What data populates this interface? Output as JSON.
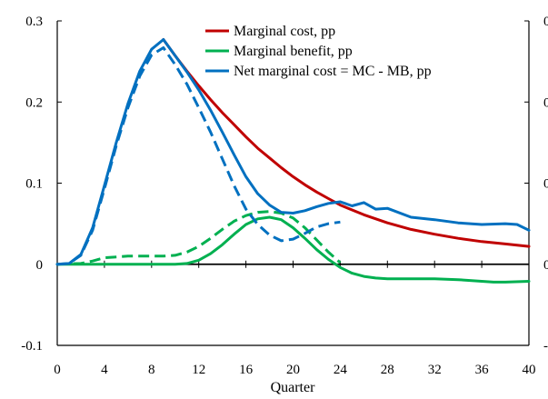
{
  "chart_data": {
    "type": "line",
    "title": "",
    "xlabel": "Quarter",
    "ylabel": "",
    "xlim": [
      0,
      40
    ],
    "ylim": [
      -0.1,
      0.3
    ],
    "xticks": [
      0,
      4,
      8,
      12,
      16,
      20,
      24,
      28,
      32,
      36,
      40
    ],
    "yticks": [
      -0.1,
      0,
      0.1,
      0.2,
      0.3
    ],
    "ytick_labels": [
      "-0.1",
      "0",
      "0.1",
      "0.2",
      "0.3"
    ],
    "grid": false,
    "legend_position": "top-right",
    "series": [
      {
        "name": "Marginal cost, pp",
        "color": "#c00000",
        "style": "solid",
        "x": [
          9,
          10,
          11,
          12,
          13,
          14,
          15,
          16,
          17,
          18,
          19,
          20,
          21,
          22,
          23,
          24,
          26,
          28,
          30,
          32,
          34,
          36,
          38,
          40
        ],
        "y": [
          0.277,
          0.257,
          0.238,
          0.22,
          0.203,
          0.187,
          0.172,
          0.157,
          0.143,
          0.131,
          0.119,
          0.108,
          0.098,
          0.089,
          0.081,
          0.073,
          0.061,
          0.051,
          0.043,
          0.037,
          0.032,
          0.028,
          0.025,
          0.022
        ]
      },
      {
        "name": "Marginal benefit, pp",
        "color": "#00b050",
        "style": "solid",
        "x": [
          0,
          2,
          4,
          6,
          8,
          9,
          10,
          11,
          12,
          13,
          14,
          15,
          16,
          17,
          18,
          19,
          20,
          21,
          22,
          23,
          24,
          25,
          26,
          27,
          28,
          30,
          32,
          34,
          36,
          37,
          38,
          40
        ],
        "y": [
          0,
          0,
          0,
          0,
          0,
          0,
          0,
          0.001,
          0.005,
          0.013,
          0.024,
          0.037,
          0.049,
          0.056,
          0.058,
          0.055,
          0.045,
          0.032,
          0.018,
          0.006,
          -0.004,
          -0.011,
          -0.015,
          -0.017,
          -0.018,
          -0.018,
          -0.018,
          -0.019,
          -0.021,
          -0.022,
          -0.022,
          -0.021
        ]
      },
      {
        "name": "Marginal benefit, pp (dashed)",
        "color": "#00b050",
        "style": "dashed",
        "x": [
          0,
          2,
          3,
          4,
          5,
          6,
          7,
          8,
          9,
          10,
          11,
          12,
          13,
          14,
          15,
          16,
          17,
          18,
          19,
          20,
          21,
          22,
          23,
          24
        ],
        "y": [
          0,
          0.001,
          0.004,
          0.008,
          0.009,
          0.01,
          0.01,
          0.01,
          0.01,
          0.011,
          0.015,
          0.022,
          0.032,
          0.043,
          0.053,
          0.06,
          0.064,
          0.065,
          0.063,
          0.057,
          0.045,
          0.03,
          0.015,
          0.002
        ]
      },
      {
        "name": "Net marginal cost = MC - MB, pp",
        "color": "#0070c0",
        "style": "solid",
        "x": [
          0,
          1,
          2,
          3,
          4,
          5,
          6,
          7,
          8,
          9,
          10,
          11,
          12,
          13,
          14,
          15,
          16,
          17,
          18,
          19,
          20,
          21,
          22,
          23,
          24,
          25,
          26,
          27,
          28,
          30,
          32,
          34,
          36,
          38,
          39,
          40
        ],
        "y": [
          0,
          0.001,
          0.012,
          0.045,
          0.097,
          0.15,
          0.198,
          0.238,
          0.265,
          0.277,
          0.257,
          0.237,
          0.215,
          0.19,
          0.163,
          0.135,
          0.108,
          0.087,
          0.073,
          0.064,
          0.063,
          0.066,
          0.071,
          0.075,
          0.077,
          0.072,
          0.076,
          0.068,
          0.069,
          0.058,
          0.055,
          0.051,
          0.049,
          0.05,
          0.049,
          0.042
        ]
      },
      {
        "name": "Net marginal cost = MC - MB, pp (dashed)",
        "color": "#0070c0",
        "style": "dashed",
        "x": [
          0,
          1,
          2,
          3,
          4,
          5,
          6,
          7,
          8,
          9,
          10,
          11,
          12,
          13,
          14,
          15,
          16,
          17,
          18,
          19,
          20,
          21,
          22,
          23,
          24
        ],
        "y": [
          0,
          0.001,
          0.011,
          0.042,
          0.093,
          0.146,
          0.193,
          0.232,
          0.258,
          0.267,
          0.246,
          0.222,
          0.193,
          0.163,
          0.13,
          0.097,
          0.068,
          0.049,
          0.036,
          0.029,
          0.031,
          0.038,
          0.046,
          0.05,
          0.052
        ]
      }
    ]
  }
}
